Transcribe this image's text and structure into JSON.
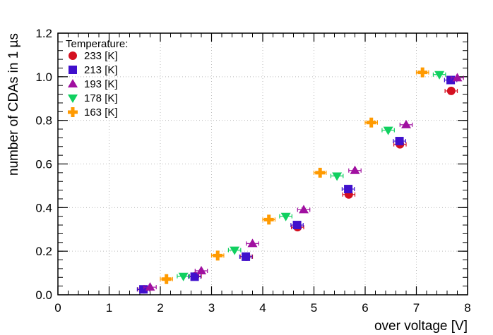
{
  "chart_data": {
    "type": "scatter",
    "title": "",
    "xlabel": "over voltage [V]",
    "ylabel": "number of CDAs in 1 µs",
    "xlim": [
      0,
      8
    ],
    "ylim": [
      0,
      1.2
    ],
    "xticks": [
      "0",
      "1",
      "2",
      "3",
      "4",
      "5",
      "6",
      "7",
      "8"
    ],
    "yticks": [
      "0.0",
      "0.2",
      "0.4",
      "0.6",
      "0.8",
      "1.0",
      "1.2"
    ],
    "grid": true,
    "legend_title": "Temperature:",
    "legend_position": "top-left",
    "series": [
      {
        "name": "233 [K]",
        "marker": "circle",
        "color": "#d41020",
        "x": [
          1.68,
          2.68,
          3.68,
          4.68,
          5.68,
          6.68,
          7.68
        ],
        "y": [
          0.025,
          0.085,
          0.175,
          0.31,
          0.46,
          0.69,
          0.935
        ],
        "xerr": 0.12
      },
      {
        "name": "213 [K]",
        "marker": "square",
        "color": "#4010cc",
        "x": [
          1.67,
          2.67,
          3.67,
          4.67,
          5.67,
          6.67,
          7.67
        ],
        "y": [
          0.025,
          0.083,
          0.175,
          0.32,
          0.485,
          0.705,
          0.985
        ],
        "xerr": 0.12
      },
      {
        "name": "193 [K]",
        "marker": "triangle-up",
        "color": "#a010a0",
        "x": [
          1.8,
          2.8,
          3.8,
          4.8,
          5.8,
          6.8,
          7.8
        ],
        "y": [
          0.035,
          0.11,
          0.235,
          0.39,
          0.57,
          0.78,
          0.995
        ],
        "xerr": 0.12
      },
      {
        "name": "178 [K]",
        "marker": "triangle-down",
        "color": "#10d060",
        "x": [
          2.45,
          3.45,
          4.45,
          5.45,
          6.45,
          7.45
        ],
        "y": [
          0.085,
          0.205,
          0.36,
          0.545,
          0.755,
          1.01
        ],
        "xerr": 0.12
      },
      {
        "name": "163 [K]",
        "marker": "cross",
        "color": "#ff9a00",
        "x": [
          2.12,
          3.12,
          4.12,
          5.12,
          6.12,
          7.12
        ],
        "y": [
          0.072,
          0.18,
          0.345,
          0.56,
          0.79,
          1.02
        ],
        "xerr": 0.12
      }
    ]
  }
}
